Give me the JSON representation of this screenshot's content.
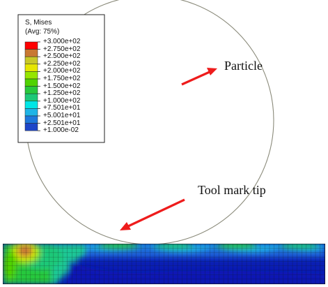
{
  "legend": {
    "title_line1": "S, Mises",
    "title_line2": "(Avg: 75%)",
    "labels": [
      "+3.000e+02",
      "+2.750e+02",
      "+2.500e+02",
      "+2.250e+02",
      "+2.000e+02",
      "+1.750e+02",
      "+1.500e+02",
      "+1.250e+02",
      "+1.000e+02",
      "+7.501e+01",
      "+5.001e+01",
      "+2.501e+01",
      "+1.000e-02"
    ],
    "colors": [
      "#ff0000",
      "#c87832",
      "#c8c828",
      "#e6e600",
      "#96e600",
      "#50d200",
      "#28c83c",
      "#1ec878",
      "#00e6e6",
      "#1eb4e6",
      "#1e78dc",
      "#1e46c8",
      "#0a14b4"
    ]
  },
  "annotations": {
    "particle_label": "Particle",
    "tool_mark_label": "Tool mark tip"
  },
  "colors": {
    "arrow": "#ee1c1c",
    "particle_outline": "#8a8a7a",
    "mesh_line": "#111111"
  }
}
